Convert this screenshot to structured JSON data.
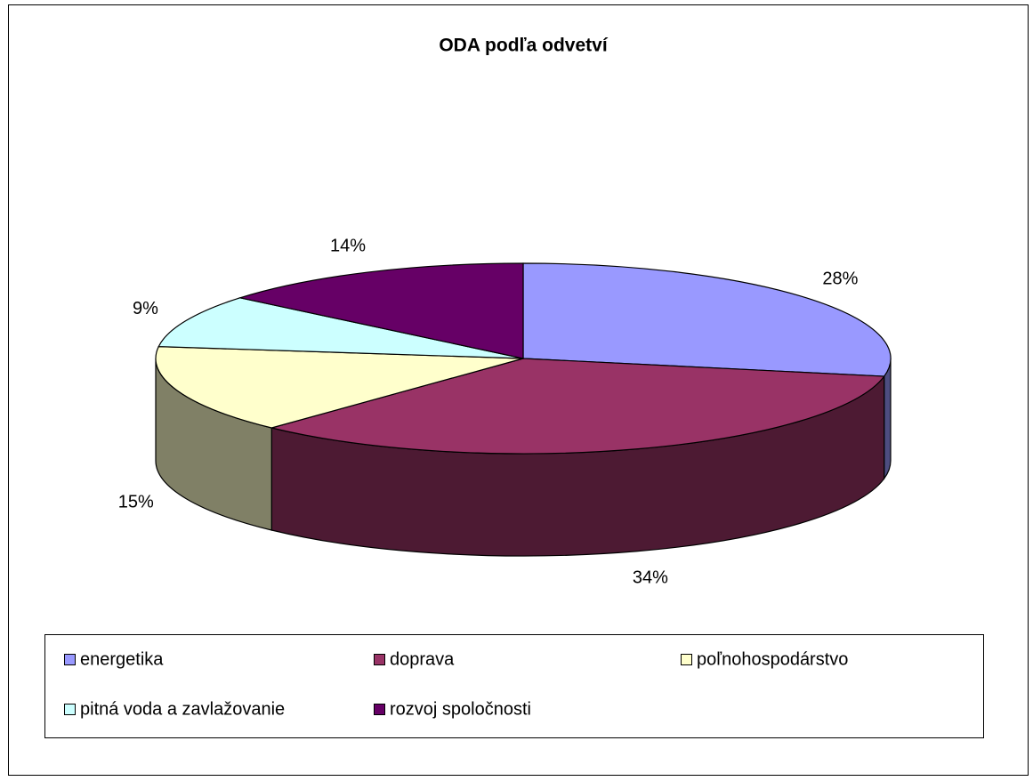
{
  "chart_data": {
    "type": "pie",
    "title": "ODA podľa odvetví",
    "categories": [
      "energetika",
      "doprava",
      "poľnohospodárstvo",
      "pitná voda a zavlažovanie",
      "rozvoj spoločnosti"
    ],
    "values": [
      28,
      34,
      15,
      9,
      14
    ],
    "value_labels": [
      "28%",
      "34%",
      "15%",
      "9%",
      "14%"
    ],
    "colors": [
      "#9999ff",
      "#993366",
      "#ffffcc",
      "#ccffff",
      "#660066"
    ],
    "legend": "bottom"
  }
}
